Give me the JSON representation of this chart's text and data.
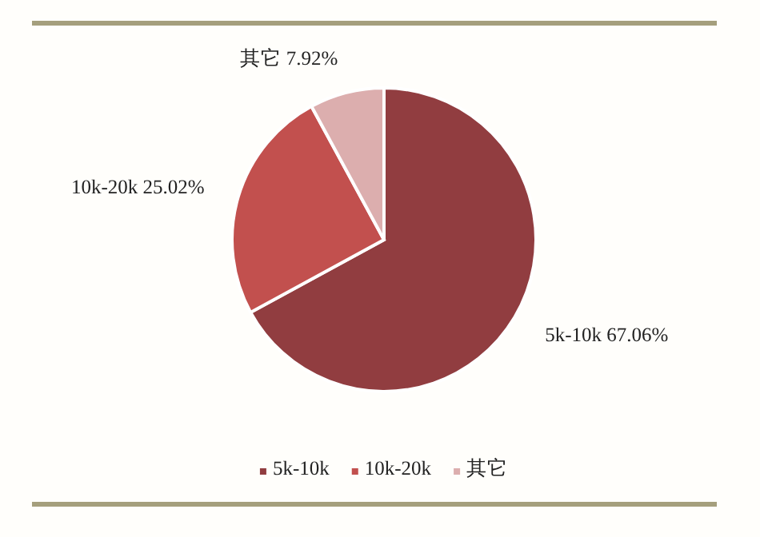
{
  "chart_data": {
    "type": "pie",
    "categories": [
      "5k-10k",
      "10k-20k",
      "其它"
    ],
    "values": [
      67.06,
      25.02,
      7.92
    ],
    "colors": [
      "#913d40",
      "#c2504e",
      "#dcaeae"
    ],
    "value_labels": [
      "5k-10k 67.06%",
      "10k-20k 25.02%",
      "其它 7.92%"
    ],
    "legend": "bottom"
  }
}
